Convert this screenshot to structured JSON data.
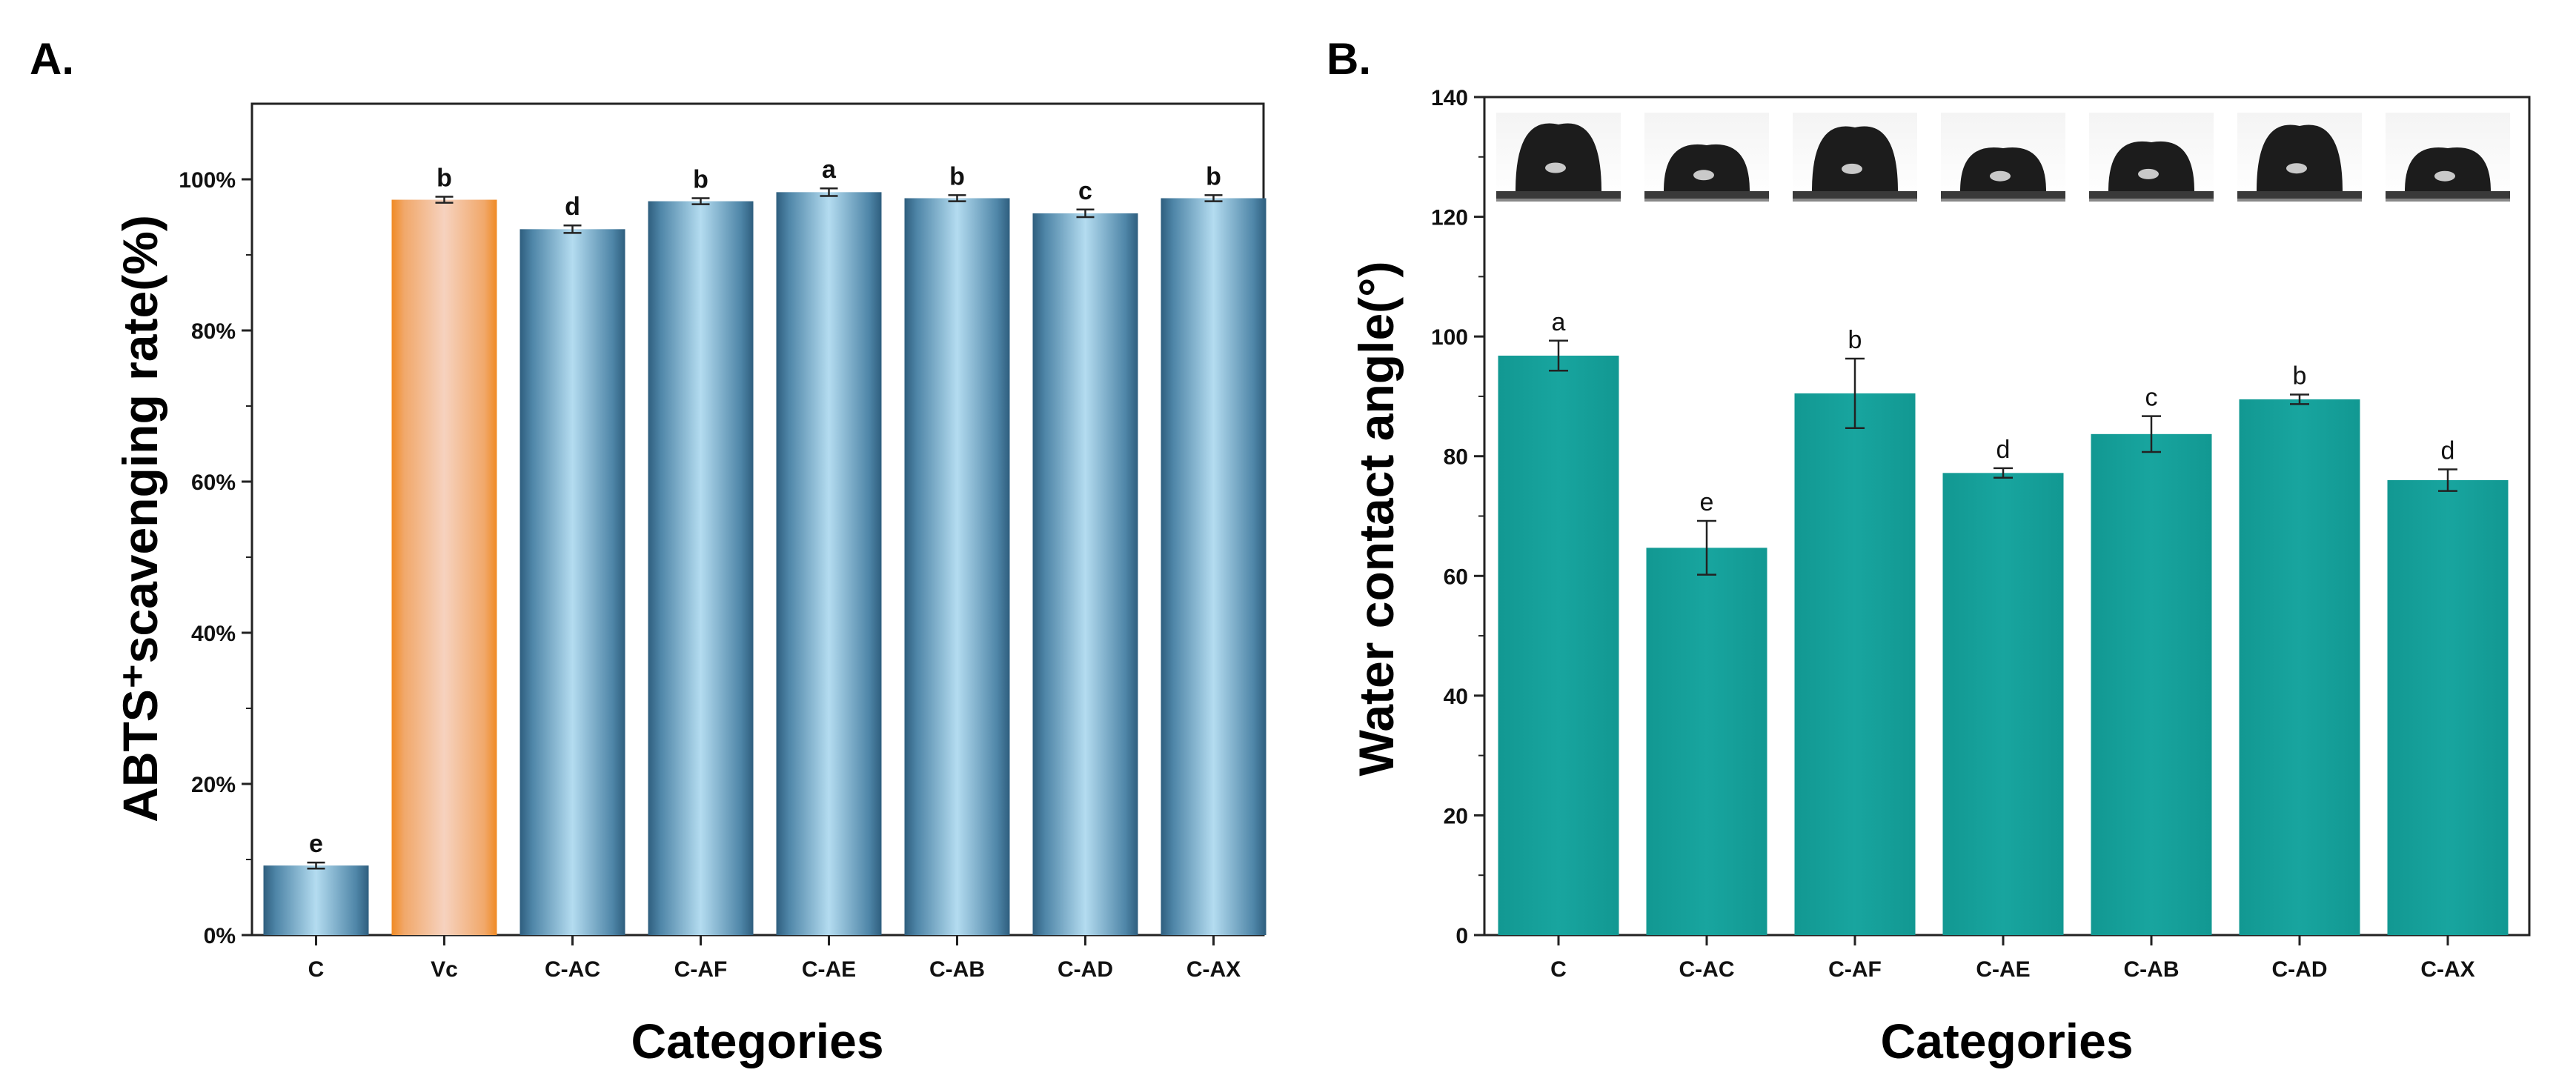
{
  "chart_data": [
    {
      "panel_label": "A.",
      "type": "bar",
      "categories": [
        "C",
        "Vc",
        "C-AC",
        "C-AF",
        "C-AE",
        "C-AB",
        "C-AD",
        "C-AX"
      ],
      "values": [
        9.2,
        97.3,
        93.4,
        97.1,
        98.3,
        97.5,
        95.5,
        97.5
      ],
      "errors": [
        0.4,
        0.4,
        0.5,
        0.4,
        0.5,
        0.4,
        0.5,
        0.4
      ],
      "significance": [
        "e",
        "b",
        "d",
        "b",
        "a",
        "b",
        "c",
        "b"
      ],
      "xlabel": "Categories",
      "ylabel": "ABTS⁺scavenging rate(%)",
      "ylim": [
        0,
        110
      ],
      "yticks": [
        0,
        20,
        40,
        60,
        80,
        100
      ],
      "ytick_labels": [
        "0%",
        "20%",
        "40%",
        "60%",
        "80%",
        "100%"
      ],
      "colors": {
        "default": "#2f5f7f",
        "highlight": "#f08a24",
        "highlight_category": "Vc"
      }
    },
    {
      "panel_label": "B.",
      "type": "bar",
      "categories": [
        "C",
        "C-AC",
        "C-AF",
        "C-AE",
        "C-AB",
        "C-AD",
        "C-AX"
      ],
      "values": [
        96.8,
        64.7,
        90.5,
        77.2,
        83.7,
        89.5,
        76.0
      ],
      "errors": [
        2.5,
        4.5,
        5.8,
        0.8,
        3.0,
        0.8,
        1.8
      ],
      "significance": [
        "a",
        "e",
        "b",
        "d",
        "c",
        "b",
        "d"
      ],
      "xlabel": "Categories",
      "ylabel": "Water contact angle(°)",
      "ylim": [
        0,
        140
      ],
      "yticks": [
        0,
        20,
        40,
        60,
        80,
        100,
        120,
        140
      ],
      "colors": {
        "bar": "#149c96"
      }
    }
  ]
}
